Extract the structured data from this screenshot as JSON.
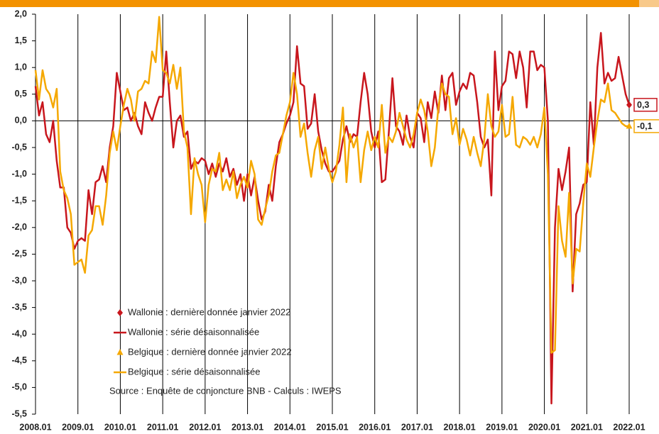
{
  "chart_data": {
    "type": "line",
    "categories": [
      "2008.01",
      null,
      null,
      null,
      null,
      null,
      null,
      null,
      null,
      null,
      null,
      null,
      "2009.01",
      null,
      null,
      null,
      null,
      null,
      null,
      null,
      null,
      null,
      null,
      null,
      "2010.01",
      null,
      null,
      null,
      null,
      null,
      null,
      null,
      null,
      null,
      null,
      null,
      "2011.01",
      null,
      null,
      null,
      null,
      null,
      null,
      null,
      null,
      null,
      null,
      null,
      "2012.01",
      null,
      null,
      null,
      null,
      null,
      null,
      null,
      null,
      null,
      null,
      null,
      "2013.01",
      null,
      null,
      null,
      null,
      null,
      null,
      null,
      null,
      null,
      null,
      null,
      "2014.01",
      null,
      null,
      null,
      null,
      null,
      null,
      null,
      null,
      null,
      null,
      null,
      "2015.01",
      null,
      null,
      null,
      null,
      null,
      null,
      null,
      null,
      null,
      null,
      null,
      "2016.01",
      null,
      null,
      null,
      null,
      null,
      null,
      null,
      null,
      null,
      null,
      null,
      "2017.01",
      null,
      null,
      null,
      null,
      null,
      null,
      null,
      null,
      null,
      null,
      null,
      "2018.01",
      null,
      null,
      null,
      null,
      null,
      null,
      null,
      null,
      null,
      null,
      null,
      "2019.01",
      null,
      null,
      null,
      null,
      null,
      null,
      null,
      null,
      null,
      null,
      null,
      "2020.01",
      null,
      null,
      null,
      null,
      null,
      null,
      null,
      null,
      null,
      null,
      null,
      "2021.01",
      null,
      null,
      null,
      null,
      null,
      null,
      null,
      null,
      null,
      null,
      null,
      "2022.01"
    ],
    "series": [
      {
        "name": "Wallonie : dernière donnée janvier 2022",
        "color": "#c8161d",
        "marker": "diamond",
        "x": [
          "2022.01"
        ],
        "values": [
          0.3
        ],
        "value_labels": [
          "0,3"
        ]
      },
      {
        "name": "Wallonie : série désaisonnalisée",
        "color": "#c8161d",
        "marker": "line",
        "values": [
          0.65,
          0.1,
          0.35,
          -0.25,
          -0.4,
          0.0,
          -0.75,
          -1.25,
          -1.25,
          -2.0,
          -2.1,
          -2.4,
          -2.25,
          -2.2,
          -2.25,
          -1.3,
          -1.75,
          -1.15,
          -1.1,
          -0.85,
          -1.15,
          -0.5,
          -0.1,
          0.9,
          0.55,
          0.2,
          0.25,
          0.0,
          0.15,
          -0.1,
          -0.25,
          0.35,
          0.15,
          0.0,
          0.25,
          0.45,
          0.45,
          1.3,
          0.35,
          -0.5,
          0.0,
          0.1,
          -0.3,
          -0.2,
          -0.9,
          -0.75,
          -0.8,
          -0.7,
          -0.75,
          -1.0,
          -0.8,
          -1.05,
          -0.8,
          -0.95,
          -0.7,
          -1.05,
          -0.9,
          -1.2,
          -1.0,
          -1.5,
          -1.0,
          -1.4,
          -1.05,
          -1.5,
          -1.85,
          -1.7,
          -1.2,
          -1.5,
          -0.85,
          -0.4,
          -0.25,
          -0.05,
          0.1,
          0.35,
          1.4,
          0.7,
          0.65,
          -0.15,
          -0.05,
          0.5,
          -0.2,
          -0.55,
          -0.8,
          -0.95,
          -0.95,
          -0.85,
          -0.75,
          -0.35,
          -0.1,
          -0.4,
          -0.25,
          -0.3,
          0.35,
          0.9,
          0.5,
          -0.2,
          -0.5,
          -0.2,
          -1.15,
          -1.1,
          -0.2,
          0.8,
          -0.1,
          -0.2,
          -0.45,
          0.1,
          -0.3,
          -0.5,
          0.15,
          0.05,
          -0.4,
          0.35,
          0.05,
          0.55,
          0.15,
          0.85,
          0.2,
          0.8,
          0.9,
          0.3,
          0.55,
          0.7,
          0.6,
          0.9,
          0.85,
          0.35,
          -0.3,
          -0.5,
          -0.35,
          -1.4,
          1.3,
          0.2,
          0.65,
          0.75,
          1.3,
          1.25,
          0.8,
          1.3,
          1.0,
          0.25,
          1.3,
          1.3,
          0.95,
          1.05,
          1.0,
          0.0,
          -5.3,
          -2.0,
          -0.9,
          -1.3,
          -0.95,
          -0.5,
          -3.2,
          -1.75,
          -1.55,
          -1.2,
          -1.15,
          0.35,
          -0.45,
          1.0,
          1.65,
          0.7,
          0.9,
          0.75,
          0.8,
          1.2,
          0.85,
          0.5,
          0.3
        ]
      },
      {
        "name": "Belgique : dernière donnée janvier 2022",
        "color": "#f5a800",
        "marker": "triangle",
        "x": [
          "2022.01"
        ],
        "values": [
          -0.1
        ],
        "value_labels": [
          "-0,1"
        ]
      },
      {
        "name": "Belgique : série désaisonnalisée",
        "color": "#f5a800",
        "marker": "line",
        "values": [
          0.95,
          0.4,
          0.95,
          0.6,
          0.5,
          0.25,
          0.6,
          -0.95,
          -1.3,
          -1.45,
          -1.75,
          -2.7,
          -2.65,
          -2.6,
          -2.85,
          -2.15,
          -2.05,
          -1.6,
          -1.6,
          -1.95,
          -1.4,
          -0.6,
          -0.2,
          -0.55,
          -0.1,
          0.3,
          0.6,
          0.4,
          0.0,
          0.55,
          0.6,
          0.75,
          0.7,
          1.3,
          1.1,
          1.95,
          0.95,
          0.9,
          0.7,
          1.05,
          0.6,
          1.0,
          -0.2,
          -0.5,
          -1.75,
          -0.7,
          -1.0,
          -1.2,
          -1.9,
          -1.2,
          -0.9,
          -0.95,
          -0.6,
          -1.3,
          -1.1,
          -1.3,
          -0.95,
          -1.45,
          -1.2,
          -1.05,
          -1.25,
          -0.75,
          -1.0,
          -1.85,
          -1.95,
          -1.65,
          -1.4,
          -0.95,
          -0.65,
          -0.6,
          -0.25,
          0.1,
          0.35,
          0.9,
          0.5,
          -0.3,
          -0.05,
          -0.6,
          -1.05,
          -0.55,
          -0.3,
          -0.9,
          -0.5,
          -0.9,
          -1.15,
          -0.95,
          -0.45,
          0.25,
          -1.15,
          -0.25,
          -0.5,
          -0.3,
          -1.15,
          -0.55,
          -0.2,
          -0.55,
          -0.3,
          -0.5,
          0.3,
          -0.6,
          -0.3,
          -0.4,
          -0.2,
          0.15,
          -0.1,
          -0.35,
          -0.5,
          -0.25,
          0.15,
          0.4,
          0.2,
          -0.2,
          -0.85,
          -0.5,
          0.25,
          0.7,
          0.5,
          0.45,
          -0.25,
          0.05,
          -0.45,
          -0.15,
          -0.35,
          -0.65,
          -0.3,
          -0.6,
          -0.85,
          -0.35,
          0.5,
          -0.1,
          -0.3,
          -0.2,
          0.3,
          -0.3,
          -0.25,
          0.45,
          -0.45,
          -0.5,
          -0.3,
          -0.35,
          -0.45,
          -0.3,
          -0.5,
          -0.25,
          0.25,
          -1.0,
          -4.35,
          -4.3,
          -1.6,
          -2.25,
          -2.55,
          -1.35,
          -3.05,
          -2.4,
          -2.45,
          -1.55,
          -0.8,
          -1.05,
          -0.5,
          0.0,
          0.4,
          0.35,
          0.7,
          0.2,
          0.15,
          0.05,
          -0.05,
          -0.1,
          -0.1
        ]
      }
    ],
    "note": "Source : Enquête de conjoncture BNB - Calculs : IWEPS",
    "ylim": [
      -5.5,
      2.0
    ],
    "yticks": [
      {
        "value": 2.0,
        "label": "2,0"
      },
      {
        "value": 1.5,
        "label": "1,5"
      },
      {
        "value": 1.0,
        "label": "1,0"
      },
      {
        "value": 0.5,
        "label": "0,5"
      },
      {
        "value": 0.0,
        "label": "0,0"
      },
      {
        "value": -0.5,
        "label": "-0,5"
      },
      {
        "value": -1.0,
        "label": "-1,0"
      },
      {
        "value": -1.5,
        "label": "-1,5"
      },
      {
        "value": -2.0,
        "label": "-2,0"
      },
      {
        "value": -2.5,
        "label": "-2,5"
      },
      {
        "value": -3.0,
        "label": "-3,0"
      },
      {
        "value": -3.5,
        "label": "-3,5"
      },
      {
        "value": -4.0,
        "label": "-4,0"
      },
      {
        "value": -4.5,
        "label": "-4,5"
      },
      {
        "value": -5.0,
        "label": "-5,0"
      },
      {
        "value": -5.5,
        "label": "-5,5"
      }
    ],
    "grid": true
  }
}
